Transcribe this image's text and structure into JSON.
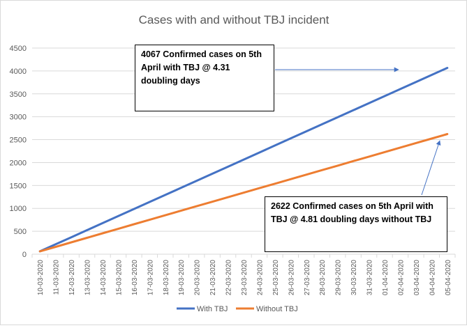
{
  "chart_data": {
    "type": "line",
    "title": "Cases with and without TBJ incident",
    "categories": [
      "10-03-2020",
      "11-03-2020",
      "12-03-2020",
      "13-03-2020",
      "14-03-2020",
      "15-03-2020",
      "16-03-2020",
      "17-03-2020",
      "18-03-2020",
      "19-03-2020",
      "20-03-2020",
      "21-03-2020",
      "22-03-2020",
      "23-03-2020",
      "24-03-2020",
      "25-03-2020",
      "26-03-2020",
      "27-03-2020",
      "28-03-2020",
      "29-03-2020",
      "30-03-2020",
      "31-03-2020",
      "01-04-2020",
      "02-04-2020",
      "03-04-2020",
      "04-04-2020",
      "05-04-2020"
    ],
    "series": [
      {
        "name": "With TBJ",
        "color": "#4472c4",
        "values": [
          62,
          216,
          370,
          524,
          678,
          832,
          986,
          1140,
          1294,
          1448,
          1602,
          1756,
          1910,
          2064,
          2218,
          2373,
          2527,
          2681,
          2835,
          2989,
          3143,
          3297,
          3451,
          3605,
          3759,
          3913,
          4067
        ]
      },
      {
        "name": "Without TBJ",
        "color": "#ed7d31",
        "values": [
          62,
          160,
          259,
          357,
          456,
          554,
          653,
          751,
          850,
          948,
          1047,
          1145,
          1244,
          1342,
          1441,
          1539,
          1638,
          1736,
          1835,
          1933,
          2032,
          2130,
          2229,
          2327,
          2426,
          2524,
          2622
        ]
      }
    ],
    "yticks": [
      0,
      500,
      1000,
      1500,
      2000,
      2500,
      3000,
      3500,
      4000,
      4500
    ],
    "ylim": [
      0,
      4500
    ],
    "grid": true,
    "legend": "bottom",
    "annotations": [
      {
        "text": "4067 Confirmed cases on 5th April with TBJ @ 4.31 doubling days"
      },
      {
        "text": "2622 Confirmed cases on 5th April with TBJ @ 4.81 doubling days without TBJ"
      }
    ]
  }
}
